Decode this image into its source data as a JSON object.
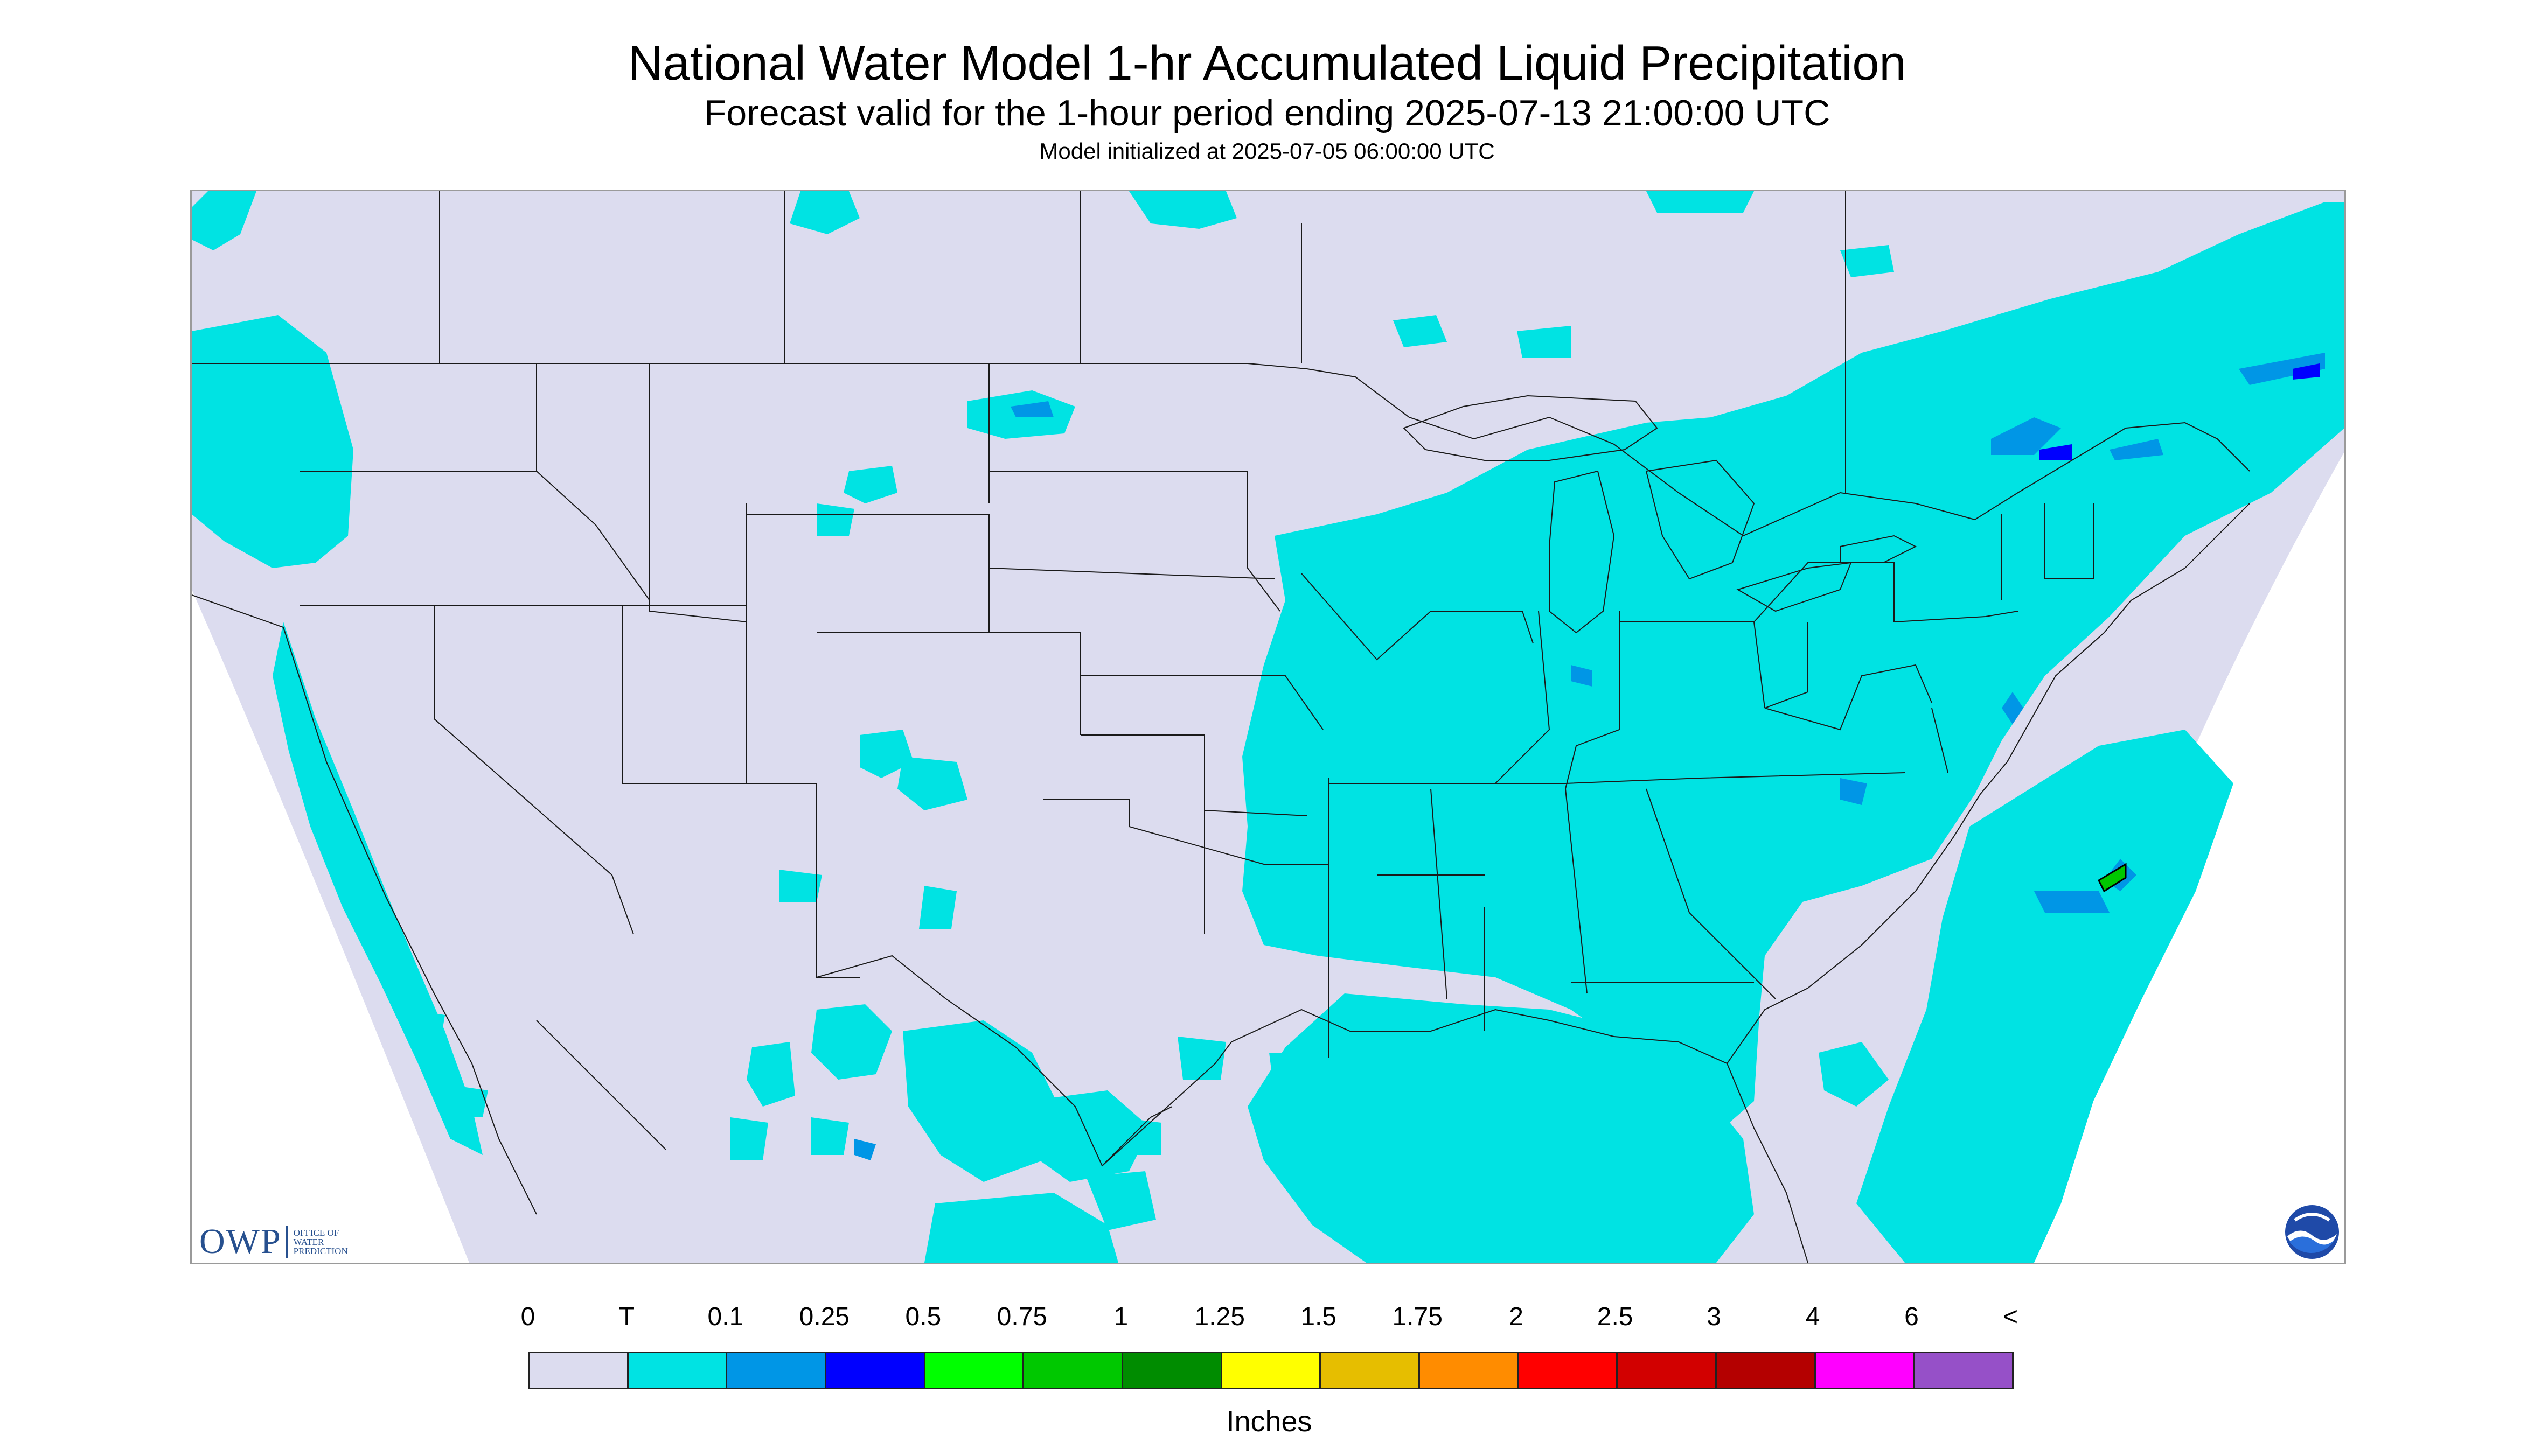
{
  "header": {
    "title": "National Water Model 1-hr Accumulated Liquid Precipitation",
    "subtitle": "Forecast valid for the 1-hour period ending 2025-07-13 21:00:00 UTC",
    "init": "Model initialized at 2025-07-05 06:00:00 UTC"
  },
  "map": {
    "region": "CONUS",
    "colors": {
      "background": "#dcdcef",
      "trace": "#00e3e3",
      "low": "#0096e6",
      "borders": "#1a1a1a",
      "green_cell": "#00cc00"
    }
  },
  "logos": {
    "owp_text": "OWP",
    "owp_sub": [
      "OFFICE OF",
      "WATER",
      "PREDICTION"
    ],
    "noaa_text": "NOAA"
  },
  "legend": {
    "ticks": [
      "0",
      "T",
      "0.1",
      "0.25",
      "0.5",
      "0.75",
      "1",
      "1.25",
      "1.5",
      "1.75",
      "2",
      "2.5",
      "3",
      "4",
      "6",
      "<"
    ],
    "colors": [
      "#dcdcef",
      "#00e3e3",
      "#0096e6",
      "#0000ff",
      "#00ff00",
      "#00c800",
      "#008c00",
      "#ffff00",
      "#e6be00",
      "#ff8c00",
      "#ff0000",
      "#d20000",
      "#b40000",
      "#ff00ff",
      "#9650c8"
    ],
    "units": "Inches"
  }
}
